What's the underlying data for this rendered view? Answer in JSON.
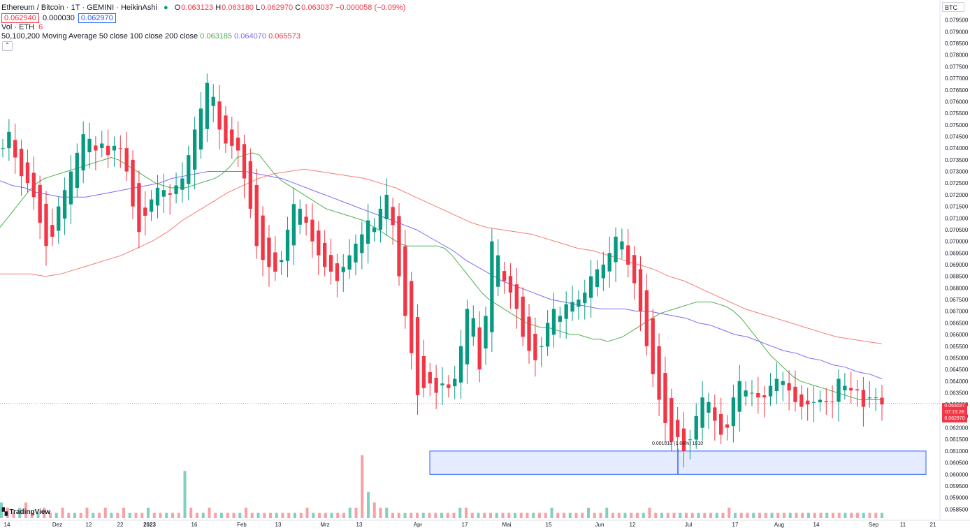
{
  "symbol": {
    "title": "Ethereum / Bitcoin · 1T · GEMINI · HeikinAshi",
    "ohlc": {
      "o_label": "O",
      "o": "0.063123",
      "h_label": "H",
      "h": "0.063180",
      "l_label": "L",
      "l": "0.062970",
      "c_label": "C",
      "c": "0.063037",
      "change": "−0.000058 (−0.09%)"
    },
    "bid": "0.062940",
    "spread": "0.000030",
    "ask": "0.062970"
  },
  "volume_legend": {
    "label": "Vol · ETH",
    "value": "6"
  },
  "ma_legend": {
    "label": "50,100,200 Moving Average 50 close 100 close 200 close",
    "ma50": "0.063185",
    "ma100": "0.064070",
    "ma200": "0.065573"
  },
  "currency": "BTC",
  "collapse_icon": "chevron-up-icon",
  "last_price": {
    "price": "0.063037",
    "countdown": "07:15:28",
    "low": "0.062970"
  },
  "measure_label": "0.001010 (1.66%) 1010",
  "logo": "TradingView",
  "colors": {
    "up": "#089981",
    "down": "#f23645",
    "ma50": "#4caf50",
    "ma100": "#7b6cf6",
    "ma200": "#f77c6f",
    "up_vol": "#7fd0bf",
    "down_vol": "#f7a0a6",
    "measure_fill": "#dbe4ff",
    "measure_stroke": "#2962ff"
  },
  "chart_data": {
    "type": "candlestick",
    "price_axis": [
      "0.079500",
      "0.079000",
      "0.078500",
      "0.078000",
      "0.077500",
      "0.077000",
      "0.076500",
      "0.076000",
      "0.075500",
      "0.075000",
      "0.074500",
      "0.074000",
      "0.073500",
      "0.073000",
      "0.072500",
      "0.072000",
      "0.071500",
      "0.071000",
      "0.070500",
      "0.070000",
      "0.069500",
      "0.069000",
      "0.068500",
      "0.068000",
      "0.067500",
      "0.067000",
      "0.066500",
      "0.066000",
      "0.065500",
      "0.065000",
      "0.064500",
      "0.064000",
      "0.063500",
      "0.063000",
      "0.062500",
      "0.062000",
      "0.061500",
      "0.061000",
      "0.060500",
      "0.060000",
      "0.059500",
      "0.059000",
      "0.058500"
    ],
    "time_axis": [
      "14",
      "Dez",
      "12",
      "22",
      "2023",
      "16",
      "Feb",
      "13",
      "Mrz",
      "13",
      "Apr",
      "17",
      "Mai",
      "15",
      "Jun",
      "12",
      "Jul",
      "17",
      "Aug",
      "14",
      "Sep",
      "11",
      "21"
    ],
    "ylim": [
      0.0583,
      0.0797
    ],
    "closes": [
      0.074,
      0.0747,
      0.0736,
      0.0728,
      0.0725,
      0.0719,
      0.0708,
      0.0698,
      0.0702,
      0.0715,
      0.0722,
      0.073,
      0.0738,
      0.0746,
      0.0744,
      0.0739,
      0.0742,
      0.0737,
      0.0741,
      0.074,
      0.073,
      0.0715,
      0.0704,
      0.0711,
      0.0718,
      0.0723,
      0.0722,
      0.072,
      0.0724,
      0.0727,
      0.0737,
      0.0748,
      0.0757,
      0.0768,
      0.0762,
      0.0748,
      0.0742,
      0.0741,
      0.0739,
      0.0727,
      0.0714,
      0.0698,
      0.0692,
      0.0689,
      0.0687,
      0.0692,
      0.0705,
      0.0716,
      0.0714,
      0.0708,
      0.07,
      0.0694,
      0.0689,
      0.0687,
      0.0683,
      0.0689,
      0.0694,
      0.0699,
      0.0703,
      0.0709,
      0.0706,
      0.0714,
      0.072,
      0.0707,
      0.0685,
      0.0668,
      0.0652,
      0.0634,
      0.0637,
      0.0639,
      0.0635,
      0.0639,
      0.0637,
      0.0641,
      0.0655,
      0.0671,
      0.0667,
      0.0645,
      0.0668,
      0.07,
      0.0694,
      0.0683,
      0.0678,
      0.0671,
      0.0659,
      0.0653,
      0.0649,
      0.0655,
      0.0665,
      0.0671,
      0.0668,
      0.0673,
      0.0674,
      0.0675,
      0.0678,
      0.0685,
      0.0688,
      0.069,
      0.0695,
      0.0702,
      0.07,
      0.069,
      0.0682,
      0.067,
      0.0655,
      0.0643,
      0.0632,
      0.0622,
      0.0614,
      0.0616,
      0.061,
      0.0615,
      0.0625,
      0.0633,
      0.0631,
      0.0623,
      0.0617,
      0.062,
      0.0633,
      0.064,
      0.0636,
      0.0635,
      0.0633,
      0.0633,
      0.0638,
      0.0641,
      0.064,
      0.0636,
      0.0631,
      0.0629,
      0.063,
      0.0631,
      0.0632,
      0.0631,
      0.0631,
      0.0641,
      0.0638,
      0.0636,
      0.0636,
      0.0629,
      0.0633,
      0.0633,
      0.063
    ],
    "ma50": [
      0.0706,
      0.071,
      0.0714,
      0.0718,
      0.0722,
      0.0725,
      0.0727,
      0.0728,
      0.0729,
      0.073,
      0.0731,
      0.0732,
      0.0733,
      0.0734,
      0.0735,
      0.0736,
      0.0735,
      0.0733,
      0.0731,
      0.0729,
      0.0727,
      0.0725,
      0.0724,
      0.0723,
      0.0723,
      0.0723,
      0.0724,
      0.0725,
      0.0726,
      0.0727,
      0.0729,
      0.0732,
      0.0736,
      0.0737,
      0.0738,
      0.0737,
      0.0733,
      0.0729,
      0.0726,
      0.0724,
      0.0722,
      0.072,
      0.0718,
      0.0716,
      0.0714,
      0.0713,
      0.0712,
      0.0711,
      0.071,
      0.0709,
      0.0707,
      0.0705,
      0.0703,
      0.0701,
      0.0699,
      0.0698,
      0.0698,
      0.0698,
      0.0698,
      0.0698,
      0.0697,
      0.0694,
      0.069,
      0.0686,
      0.0682,
      0.0678,
      0.0675,
      0.0673,
      0.0671,
      0.0669,
      0.0667,
      0.0665,
      0.0664,
      0.0663,
      0.0663,
      0.0662,
      0.0661,
      0.066,
      0.066,
      0.0659,
      0.0658,
      0.0658,
      0.0657,
      0.0658,
      0.0659,
      0.0661,
      0.0663,
      0.0665,
      0.0667,
      0.0669,
      0.067,
      0.0671,
      0.0672,
      0.0673,
      0.0674,
      0.0674,
      0.0674,
      0.0673,
      0.0672,
      0.067,
      0.0667,
      0.0663,
      0.0659,
      0.0655,
      0.0651,
      0.0648,
      0.0645,
      0.0642,
      0.064,
      0.0639,
      0.0638,
      0.0637,
      0.0636,
      0.0635,
      0.0634,
      0.0633,
      0.0632,
      0.0632,
      0.0632,
      0.0632
    ],
    "ma100": [
      0.0726,
      0.0724,
      0.0723,
      0.0721,
      0.072,
      0.0719,
      0.0719,
      0.0719,
      0.072,
      0.0721,
      0.0722,
      0.0723,
      0.0724,
      0.0725,
      0.0727,
      0.0728,
      0.0729,
      0.073,
      0.073,
      0.073,
      0.073,
      0.0729,
      0.0728,
      0.0727,
      0.0725,
      0.0723,
      0.0721,
      0.0719,
      0.0717,
      0.0715,
      0.0713,
      0.0711,
      0.0709,
      0.0707,
      0.0705,
      0.0702,
      0.0699,
      0.0696,
      0.0692,
      0.0689,
      0.0686,
      0.0683,
      0.0681,
      0.0679,
      0.0677,
      0.0675,
      0.0674,
      0.0673,
      0.0672,
      0.0671,
      0.0671,
      0.0671,
      0.067,
      0.067,
      0.0669,
      0.0668,
      0.0667,
      0.0665,
      0.0664,
      0.0662,
      0.066,
      0.0659,
      0.0657,
      0.0655,
      0.0653,
      0.0652,
      0.065,
      0.0649,
      0.0647,
      0.0646,
      0.0644,
      0.0643,
      0.0641
    ],
    "ma200": [
      0.0686,
      0.0686,
      0.0686,
      0.0685,
      0.0686,
      0.0688,
      0.069,
      0.0692,
      0.0694,
      0.0697,
      0.07,
      0.0704,
      0.0709,
      0.0713,
      0.0717,
      0.0721,
      0.0724,
      0.0727,
      0.0729,
      0.073,
      0.0731,
      0.073,
      0.0729,
      0.0728,
      0.0727,
      0.0725,
      0.0723,
      0.072,
      0.0717,
      0.0714,
      0.0711,
      0.0708,
      0.0706,
      0.0705,
      0.0704,
      0.0703,
      0.0701,
      0.0699,
      0.0697,
      0.0696,
      0.0694,
      0.0692,
      0.069,
      0.0688,
      0.0685,
      0.0683,
      0.068,
      0.0677,
      0.0674,
      0.0671,
      0.0669,
      0.0667,
      0.0665,
      0.0663,
      0.0661,
      0.0659,
      0.0658,
      0.0657,
      0.0656
    ],
    "volume": [
      3,
      2,
      1,
      2,
      3,
      1,
      1,
      2,
      1,
      1,
      2,
      1,
      1,
      1,
      2,
      1,
      1,
      2,
      1,
      1,
      2,
      1,
      1,
      1,
      2,
      1,
      1,
      1,
      1,
      1,
      9,
      2,
      1,
      1,
      2,
      1,
      1,
      1,
      1,
      1,
      2,
      1,
      1,
      1,
      1,
      1,
      1,
      1,
      1,
      1,
      2,
      1,
      1,
      1,
      1,
      1,
      1,
      2,
      2,
      12,
      5,
      3,
      2,
      2,
      1,
      1,
      1,
      1,
      1,
      1,
      1,
      1,
      1,
      1,
      1,
      2,
      2,
      1,
      1,
      1,
      1,
      1,
      1,
      1,
      1,
      1,
      1,
      1,
      1,
      1,
      2,
      1,
      1,
      1,
      1,
      1,
      2,
      1,
      1,
      2,
      1,
      1,
      1,
      1,
      1,
      1,
      2,
      1,
      1,
      1,
      1,
      1,
      1,
      1,
      1,
      1,
      1,
      1,
      1,
      2,
      1,
      1,
      1,
      1,
      1,
      1,
      1,
      1,
      1,
      1,
      1,
      1,
      1,
      1,
      1,
      1,
      1,
      1,
      1,
      1,
      1,
      1,
      1,
      1,
      1
    ],
    "measure_range": [
      0.06,
      0.061
    ]
  }
}
